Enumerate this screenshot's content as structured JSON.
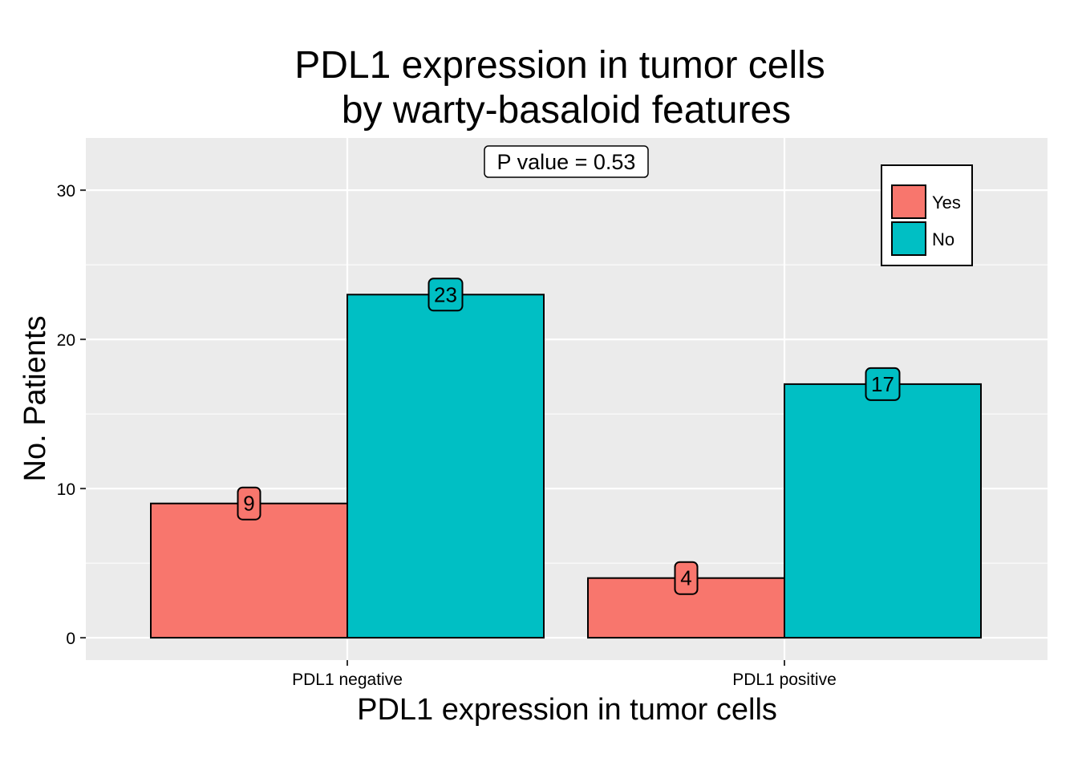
{
  "chart_data": {
    "type": "bar",
    "title_lines": [
      "PDL1 expression in tumor cells",
      "by warty-basaloid features"
    ],
    "xlabel": "PDL1 expression in tumor cells",
    "ylabel": "No. Patients",
    "categories": [
      "PDL1 negative",
      "PDL1 positive"
    ],
    "series": [
      {
        "name": "Yes",
        "values": [
          9,
          4
        ],
        "color": "#F8766D"
      },
      {
        "name": "No",
        "values": [
          23,
          17
        ],
        "color": "#00BFC4"
      }
    ],
    "ylim": [
      -1.5,
      33.5
    ],
    "yticks": [
      0,
      10,
      20,
      30
    ],
    "annotation": "P value = 0.53",
    "grid": true,
    "legend_position": "top-right",
    "panel_background": "#EBEBEB",
    "grid_color": "#FFFFFF"
  }
}
